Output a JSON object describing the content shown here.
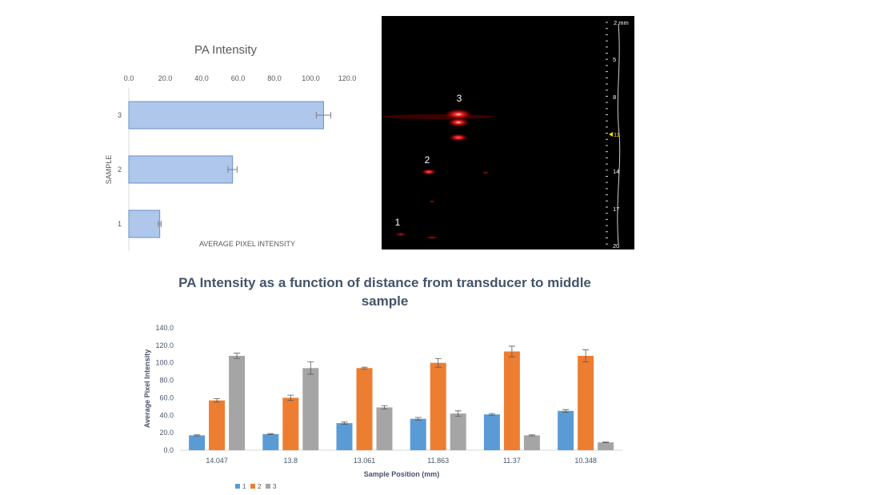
{
  "chart_data": [
    {
      "type": "bar",
      "orientation": "horizontal",
      "title": "PA Intensity",
      "xlabel": "AVERAGE PIXEL INTENSITY",
      "ylabel": "SAMPLE",
      "categories": [
        "1",
        "2",
        "3"
      ],
      "values": [
        17,
        57,
        107
      ],
      "error": [
        0.8,
        2.5,
        4
      ],
      "xlim": [
        0,
        120
      ],
      "xticks": [
        "0.0",
        "20.0",
        "40.0",
        "60.0",
        "80.0",
        "100.0",
        "120.0"
      ],
      "color": "#aec7ea",
      "edge_color": "#6b8fc9",
      "axis_position": "top",
      "grid": false
    },
    {
      "type": "bar",
      "title": "PA Intensity as a function of distance from transducer to middle sample",
      "xlabel": "Sample Position (mm)",
      "ylabel": "Average Pixel Intensity",
      "categories": [
        "14.047",
        "13.8",
        "13.061",
        "11.863",
        "11.37",
        "10.348"
      ],
      "series": [
        {
          "name": "1",
          "color": "#5b9bd5",
          "values": [
            17,
            18.5,
            31,
            36,
            41,
            45
          ],
          "error": [
            0.6,
            0.6,
            1.2,
            1.5,
            1,
            1.5
          ]
        },
        {
          "name": "2",
          "color": "#ed7d31",
          "values": [
            57,
            60,
            94,
            100,
            113,
            108
          ],
          "error": [
            2,
            3,
            1,
            5,
            6,
            7
          ]
        },
        {
          "name": "3",
          "color": "#a5a5a5",
          "values": [
            108,
            94,
            49,
            42,
            17,
            9
          ],
          "error": [
            3,
            7,
            2,
            3,
            0.6,
            0.4
          ]
        }
      ],
      "ylim": [
        0,
        140
      ],
      "yticks": [
        "0.0",
        "20.0",
        "40.0",
        "60.0",
        "80.0",
        "100.0",
        "120.0",
        "140.0"
      ],
      "legend": "bottom-left",
      "grid": false
    }
  ],
  "pa_image": {
    "sample_labels": [
      "1",
      "2",
      "3"
    ],
    "scale_labels": [
      "2 mm",
      "5",
      "8",
      "11",
      "14",
      "17",
      "20"
    ],
    "marker_color": "#ffd700"
  }
}
